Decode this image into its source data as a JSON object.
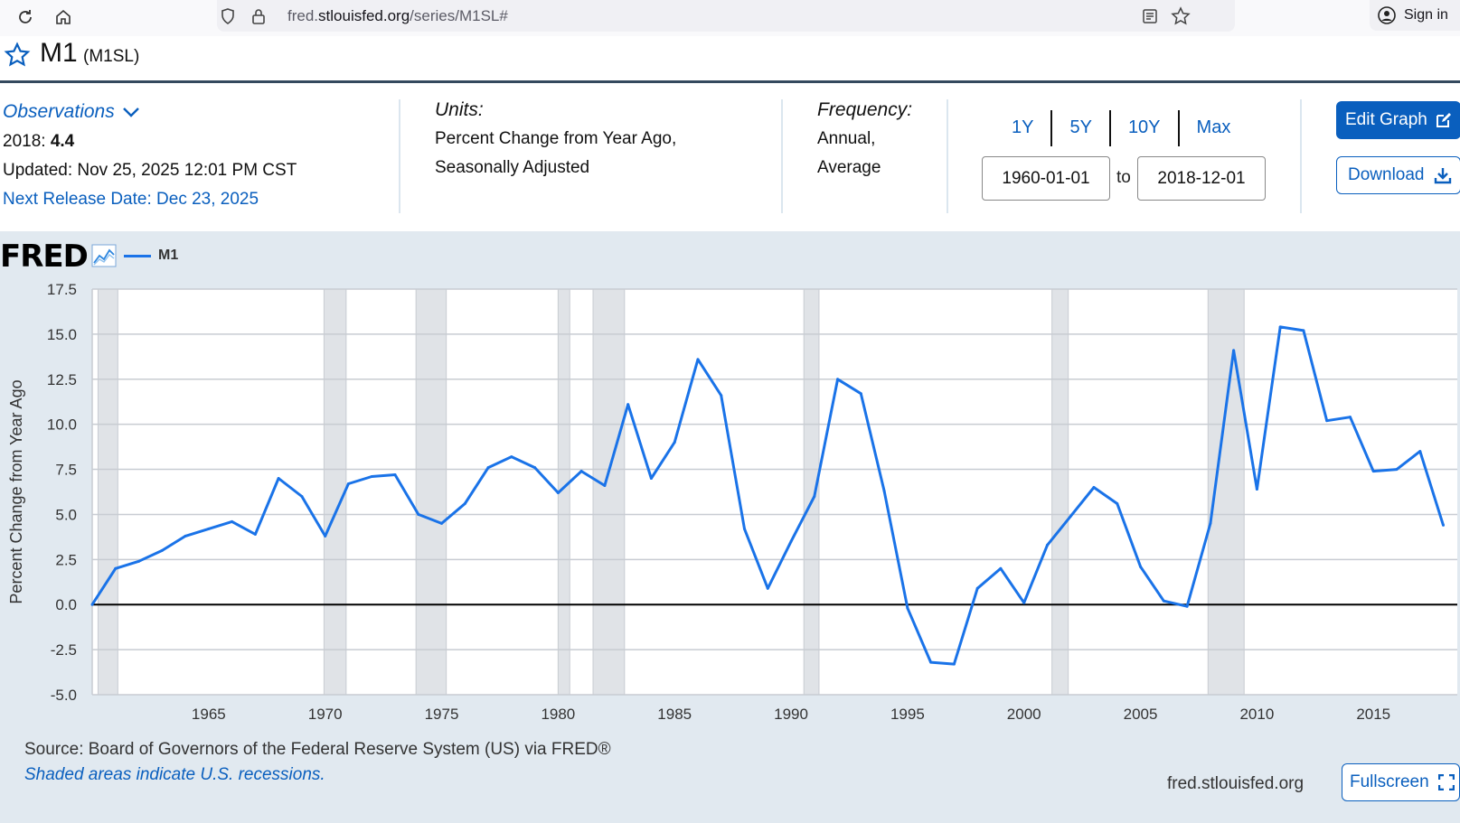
{
  "browser": {
    "url_prefix": "fred.",
    "url_domain": "stlouisfed.org",
    "url_path": "/series/M1SL#",
    "sign_in": "Sign in"
  },
  "series": {
    "title": "M1",
    "id": "(M1SL)"
  },
  "meta": {
    "observations_label": "Observations",
    "obs_year": "2018:",
    "obs_value": "4.4",
    "updated": "Updated: Nov 25, 2025 12:01 PM CST",
    "next_release": "Next Release Date: Dec 23, 2025",
    "units_label": "Units:",
    "units_line1": "Percent Change from Year Ago,",
    "units_line2": "Seasonally Adjusted",
    "frequency_label": "Frequency:",
    "frequency_line1": "Annual,",
    "frequency_line2": "Average"
  },
  "range": {
    "buttons": [
      "1Y",
      "5Y",
      "10Y",
      "Max"
    ],
    "start": "1960-01-01",
    "to": "to",
    "end": "2018-12-01"
  },
  "actions": {
    "edit_graph": "Edit Graph",
    "download": "Download",
    "fullscreen": "Fullscreen"
  },
  "chart_logo": "FRED",
  "footer": {
    "source": "Source: Board of Governors of the Federal Reserve System (US) via FRED®",
    "recession_note": "Shaded areas indicate U.S. recessions.",
    "site": "fred.stlouisfed.org"
  },
  "colors": {
    "line": "#1a73e8",
    "accent": "#0a5fbe",
    "panel": "#e1e9f0",
    "recession": "#e0e3e7"
  },
  "chart_data": {
    "type": "line",
    "ylabel": "Percent Change from Year Ago",
    "ylim": [
      -5.0,
      17.5
    ],
    "yticks": [
      "-5.0",
      "-2.5",
      "0.0",
      "2.5",
      "5.0",
      "7.5",
      "10.0",
      "12.5",
      "15.0",
      "17.5"
    ],
    "xticks": [
      "1965",
      "1970",
      "1975",
      "1980",
      "1985",
      "1990",
      "1995",
      "2000",
      "2005",
      "2010",
      "2015"
    ],
    "xlim": [
      1960,
      2018.6
    ],
    "legend": "top-left",
    "grid": true,
    "series": [
      {
        "name": "M1",
        "x": [
          1960,
          1961,
          1962,
          1963,
          1964,
          1965,
          1966,
          1967,
          1968,
          1969,
          1970,
          1971,
          1972,
          1973,
          1974,
          1975,
          1976,
          1977,
          1978,
          1979,
          1980,
          1981,
          1982,
          1983,
          1984,
          1985,
          1986,
          1987,
          1988,
          1989,
          1990,
          1991,
          1992,
          1993,
          1994,
          1995,
          1996,
          1997,
          1998,
          1999,
          2000,
          2001,
          2002,
          2003,
          2004,
          2005,
          2006,
          2007,
          2008,
          2009,
          2010,
          2011,
          2012,
          2013,
          2014,
          2015,
          2016,
          2017,
          2018
        ],
        "values": [
          0.0,
          2.0,
          2.4,
          3.0,
          3.8,
          4.2,
          4.6,
          3.9,
          7.0,
          6.0,
          3.8,
          6.7,
          7.1,
          7.2,
          5.0,
          4.5,
          5.6,
          7.6,
          8.2,
          7.6,
          6.2,
          7.4,
          6.6,
          11.1,
          7.0,
          9.0,
          13.6,
          11.6,
          4.2,
          0.9,
          3.5,
          6.0,
          12.5,
          11.7,
          6.3,
          -0.2,
          -3.2,
          -3.3,
          0.9,
          2.0,
          0.1,
          3.3,
          4.9,
          6.5,
          5.6,
          2.1,
          0.2,
          -0.1,
          4.5,
          14.1,
          6.4,
          15.4,
          15.2,
          10.2,
          10.4,
          7.4,
          7.5,
          8.5,
          4.4
        ]
      }
    ],
    "recessions": [
      [
        1960.25,
        1961.1
      ],
      [
        1969.95,
        1970.9
      ],
      [
        1973.9,
        1975.2
      ],
      [
        1980.0,
        1980.5
      ],
      [
        1981.5,
        1982.85
      ],
      [
        1990.55,
        1991.2
      ],
      [
        2001.2,
        2001.9
      ],
      [
        2007.9,
        2009.45
      ]
    ]
  }
}
